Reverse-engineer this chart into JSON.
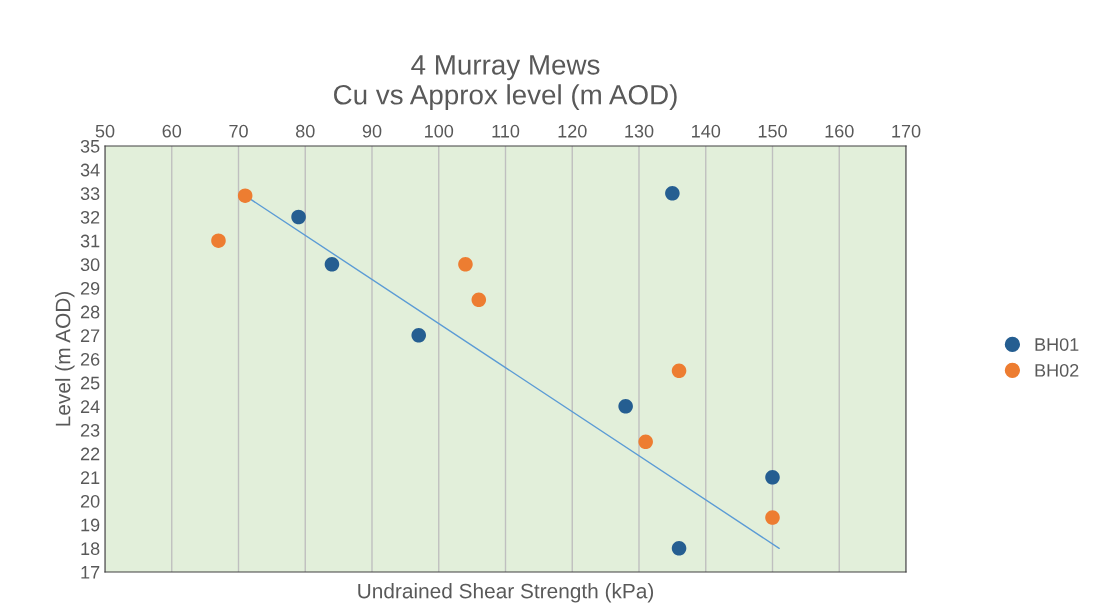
{
  "chart_data": {
    "type": "scatter",
    "title": "4 Murray Mews\nCu vs Approx level (m AOD)",
    "xlabel": "Undrained Shear Strength (kPa)",
    "ylabel": "Level (m AOD)",
    "series": [
      {
        "name": "BH01",
        "color": "#255e91",
        "x": [
          79,
          84,
          97,
          128,
          135,
          150,
          136
        ],
        "values": [
          32,
          30,
          27,
          24,
          33,
          21,
          18
        ]
      },
      {
        "name": "BH02",
        "color": "#ed7d31",
        "x": [
          71,
          67,
          104,
          106,
          136,
          131,
          150
        ],
        "values": [
          32.9,
          31,
          30,
          28.5,
          25.5,
          22.5,
          19.3
        ]
      },
      {
        "type": "line",
        "marker": "none",
        "color": "#5b9bd5",
        "x": [
          71,
          151
        ],
        "values": [
          32.9,
          18
        ]
      }
    ],
    "xlim": [
      50,
      170
    ],
    "xticks": [
      50,
      60,
      70,
      80,
      90,
      100,
      110,
      120,
      130,
      140,
      150,
      160,
      170
    ],
    "ylim": [
      17,
      35
    ],
    "yticks": [
      17,
      18,
      19,
      20,
      21,
      22,
      23,
      24,
      25,
      26,
      27,
      28,
      29,
      30,
      31,
      32,
      33,
      34,
      35
    ],
    "grid": "x",
    "legend": "right",
    "marker": "circle"
  }
}
